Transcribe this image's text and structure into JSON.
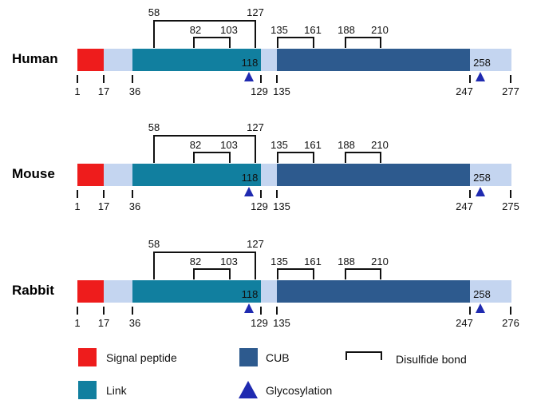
{
  "colors": {
    "signal": "#ee1c1c",
    "link": "#117f9f",
    "cub": "#2d5a8e",
    "backbone": "#c4d5f0",
    "glyco": "#1f2ab0",
    "bracket": "#111111"
  },
  "proteins": [
    {
      "name": "Human",
      "length": 277,
      "signal": [
        1,
        17
      ],
      "link": [
        36,
        129
      ],
      "cub": [
        135,
        247
      ],
      "ticks": [
        "1",
        "17",
        "36",
        "129",
        "135",
        "247",
        "277"
      ],
      "glycosylation": [
        "118",
        "258"
      ],
      "disulfide": {
        "outer": [
          "58",
          "127"
        ],
        "inner": [
          "82",
          "103"
        ],
        "cub1": [
          "135",
          "161"
        ],
        "cub2": [
          "188",
          "210"
        ]
      }
    },
    {
      "name": "Mouse",
      "length": 275,
      "signal": [
        1,
        17
      ],
      "link": [
        36,
        129
      ],
      "cub": [
        135,
        247
      ],
      "ticks": [
        "1",
        "17",
        "36",
        "129",
        "135",
        "247",
        "275"
      ],
      "glycosylation": [
        "118",
        "258"
      ],
      "disulfide": {
        "outer": [
          "58",
          "127"
        ],
        "inner": [
          "82",
          "103"
        ],
        "cub1": [
          "135",
          "161"
        ],
        "cub2": [
          "188",
          "210"
        ]
      }
    },
    {
      "name": "Rabbit",
      "length": 276,
      "signal": [
        1,
        17
      ],
      "link": [
        36,
        129
      ],
      "cub": [
        135,
        247
      ],
      "ticks": [
        "1",
        "17",
        "36",
        "129",
        "135",
        "247",
        "276"
      ],
      "glycosylation": [
        "118",
        "258"
      ],
      "disulfide": {
        "outer": [
          "58",
          "127"
        ],
        "inner": [
          "82",
          "103"
        ],
        "cub1": [
          "135",
          "161"
        ],
        "cub2": [
          "188",
          "210"
        ]
      }
    }
  ],
  "legend": {
    "signal_peptide": "Signal peptide",
    "cub": "CUB",
    "disulfide_bond": "Disulfide bond",
    "link": "Link",
    "glycosylation": "Glycosylation"
  }
}
